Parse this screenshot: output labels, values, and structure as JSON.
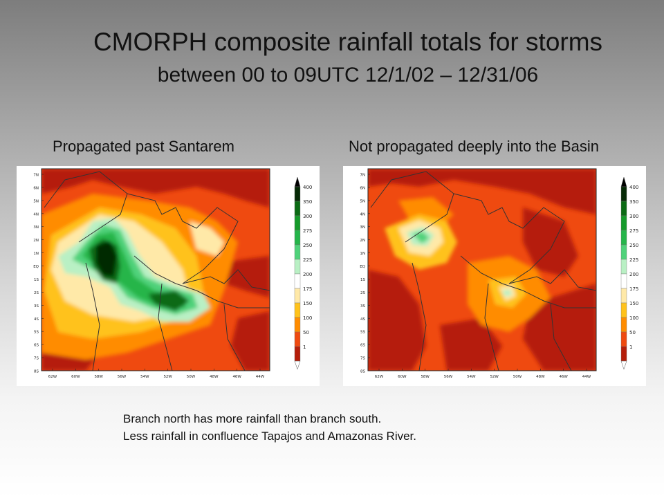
{
  "slide": {
    "title_line1": "CMORPH composite rainfall totals for storms",
    "title_line2": "between 00 to 09UTC 12/1/02 – 12/31/06",
    "bullet_line1": "Branch  north has  more rainfall than branch south.",
    "bullet_line2": "Less rainfall in confluence Tapajos and Amazonas River."
  },
  "maps": [
    {
      "caption": "Propagated past Santarem",
      "lat_labels": [
        "7N",
        "6N",
        "5N",
        "4N",
        "3N",
        "2N",
        "1N",
        "EQ",
        "1S",
        "2S",
        "3S",
        "4S",
        "5S",
        "6S",
        "7S",
        "8S"
      ],
      "lon_labels": [
        "62W",
        "60W",
        "58W",
        "56W",
        "54W",
        "52W",
        "50W",
        "48W",
        "46W",
        "44W"
      ]
    },
    {
      "caption": "Not propagated deeply into the Basin",
      "lat_labels": [
        "7N",
        "6N",
        "5N",
        "4N",
        "3N",
        "2N",
        "1N",
        "EQ",
        "1S",
        "2S",
        "3S",
        "4S",
        "5S",
        "6S",
        "7S",
        "8S"
      ],
      "lon_labels": [
        "62W",
        "60W",
        "58W",
        "56W",
        "54W",
        "52W",
        "50W",
        "48W",
        "46W",
        "44W"
      ]
    }
  ],
  "colorbar": {
    "levels": [
      "400",
      "350",
      "300",
      "275",
      "250",
      "225",
      "200",
      "175",
      "150",
      "100",
      "50",
      "1"
    ],
    "colors": [
      "#062a06",
      "#0b6a14",
      "#159a2a",
      "#25b54a",
      "#4fd27a",
      "#b9f0c4",
      "#ffffff",
      "#ffe9a8",
      "#ffc21a",
      "#ff8c00",
      "#ef4a10",
      "#b51e0a"
    ]
  }
}
